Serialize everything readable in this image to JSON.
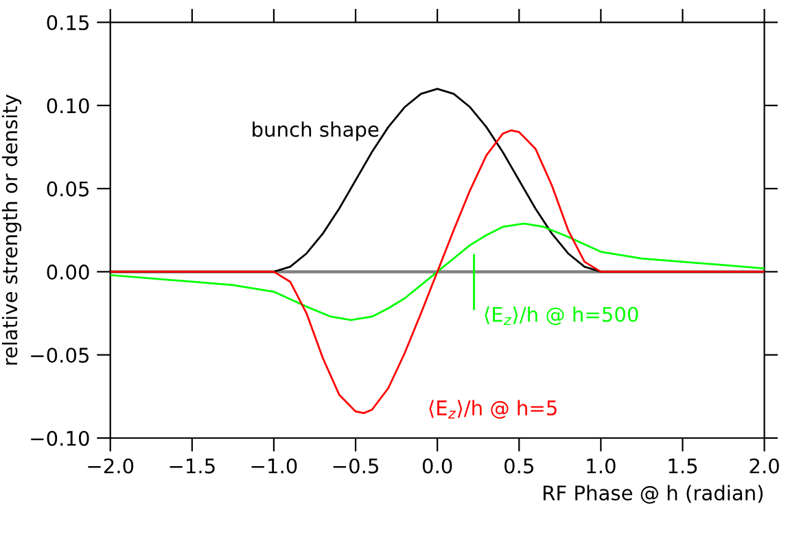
{
  "chart_data": {
    "type": "line",
    "xlabel": "RF Phase @ h (radian)",
    "ylabel": "relative strength or density",
    "xlim": [
      -2.0,
      2.0
    ],
    "ylim": [
      -0.1,
      0.15
    ],
    "xticks": [
      {
        "value": -2.0,
        "label": "−2.0"
      },
      {
        "value": -1.5,
        "label": "−1.5"
      },
      {
        "value": -1.0,
        "label": "−1.0"
      },
      {
        "value": -0.5,
        "label": "−0.5"
      },
      {
        "value": 0.0,
        "label": "0.0"
      },
      {
        "value": 0.5,
        "label": "0.5"
      },
      {
        "value": 1.0,
        "label": "1.0"
      },
      {
        "value": 1.5,
        "label": "1.5"
      },
      {
        "value": 2.0,
        "label": "2.0"
      }
    ],
    "yticks": [
      {
        "value": -0.1,
        "label": "−0.10"
      },
      {
        "value": -0.05,
        "label": "−0.05"
      },
      {
        "value": 0.0,
        "label": "0.00"
      },
      {
        "value": 0.05,
        "label": "0.05"
      },
      {
        "value": 0.1,
        "label": "0.10"
      },
      {
        "value": 0.15,
        "label": "0.15"
      }
    ],
    "grid": false,
    "legend": false,
    "marker": "none",
    "line_style": "solid",
    "ref_lines": [
      {
        "axis": "y",
        "value": 0.0,
        "color": "#808080"
      }
    ],
    "series": [
      {
        "name": "bunch shape",
        "color": "#000000",
        "x": [
          -2.0,
          -1.0,
          -0.9,
          -0.8,
          -0.7,
          -0.6,
          -0.5,
          -0.4,
          -0.3,
          -0.2,
          -0.1,
          0.0,
          0.1,
          0.2,
          0.3,
          0.4,
          0.5,
          0.6,
          0.7,
          0.8,
          0.9,
          1.0,
          2.0
        ],
        "values": [
          0.0,
          0.0,
          0.003,
          0.011,
          0.023,
          0.038,
          0.055,
          0.072,
          0.087,
          0.099,
          0.107,
          0.11,
          0.107,
          0.099,
          0.087,
          0.072,
          0.055,
          0.038,
          0.023,
          0.011,
          0.003,
          0.0,
          0.0
        ]
      },
      {
        "name": "⟨E$_{z}$⟩/h @ h=500",
        "color": "#00ff00",
        "x": [
          -2.0,
          -1.75,
          -1.5,
          -1.25,
          -1.0,
          -0.8,
          -0.65,
          -0.53,
          -0.4,
          -0.3,
          -0.2,
          -0.1,
          0.0,
          0.1,
          0.2,
          0.3,
          0.4,
          0.53,
          0.65,
          0.8,
          1.0,
          1.25,
          1.5,
          1.75,
          2.0
        ],
        "values": [
          -0.002,
          -0.004,
          -0.006,
          -0.008,
          -0.012,
          -0.021,
          -0.027,
          -0.029,
          -0.027,
          -0.022,
          -0.016,
          -0.008,
          0.0,
          0.008,
          0.016,
          0.022,
          0.027,
          0.029,
          0.027,
          0.021,
          0.012,
          0.008,
          0.006,
          0.004,
          0.002
        ]
      },
      {
        "name": "⟨E$_{z}$⟩/h @ h=5",
        "color": "#ff0000",
        "x": [
          -2.0,
          -1.0,
          -0.9,
          -0.8,
          -0.7,
          -0.6,
          -0.5,
          -0.45,
          -0.4,
          -0.3,
          -0.2,
          -0.1,
          0.0,
          0.1,
          0.2,
          0.3,
          0.4,
          0.45,
          0.5,
          0.6,
          0.7,
          0.8,
          0.9,
          1.0,
          2.0
        ],
        "values": [
          0.0,
          0.0,
          -0.006,
          -0.025,
          -0.052,
          -0.074,
          -0.084,
          -0.085,
          -0.083,
          -0.07,
          -0.049,
          -0.025,
          0.0,
          0.025,
          0.049,
          0.07,
          0.083,
          0.085,
          0.084,
          0.074,
          0.052,
          0.025,
          0.006,
          0.0,
          0.0
        ]
      }
    ]
  }
}
